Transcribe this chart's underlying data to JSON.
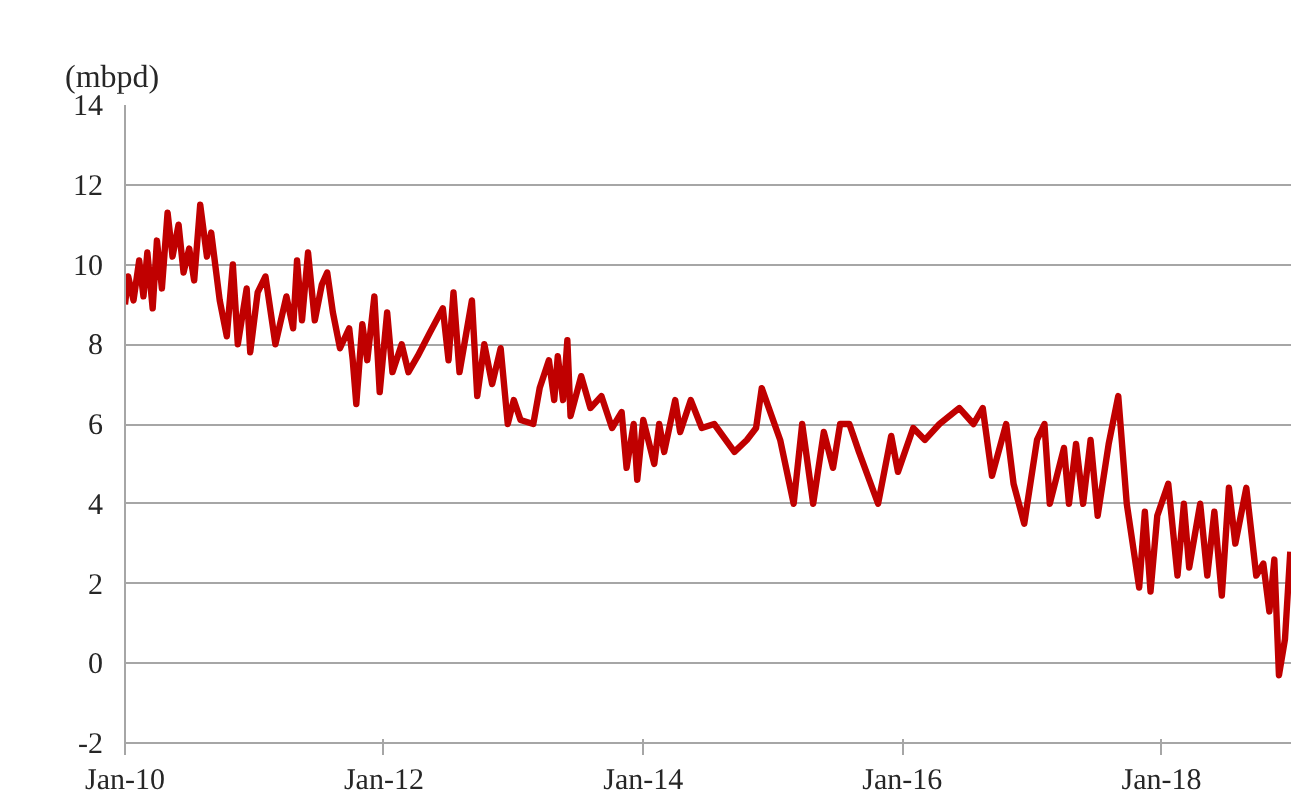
{
  "chart_data": {
    "type": "line",
    "ylabel": "(mbpd)",
    "x": [
      "2010-01-01",
      "2010-01-10",
      "2010-01-25",
      "2010-02-10",
      "2010-02-22",
      "2010-03-05",
      "2010-03-20",
      "2010-04-01",
      "2010-04-15",
      "2010-05-01",
      "2010-05-15",
      "2010-06-01",
      "2010-06-15",
      "2010-07-01",
      "2010-07-15",
      "2010-08-01",
      "2010-08-20",
      "2010-09-01",
      "2010-09-25",
      "2010-10-15",
      "2010-11-01",
      "2010-11-15",
      "2010-12-10",
      "2010-12-20",
      "2011-01-10",
      "2011-02-01",
      "2011-03-01",
      "2011-04-01",
      "2011-04-20",
      "2011-05-01",
      "2011-05-15",
      "2011-06-01",
      "2011-06-20",
      "2011-07-10",
      "2011-07-25",
      "2011-08-10",
      "2011-08-30",
      "2011-09-25",
      "2011-10-05",
      "2011-10-15",
      "2011-11-01",
      "2011-11-15",
      "2011-12-05",
      "2011-12-20",
      "2012-01-10",
      "2012-01-25",
      "2012-02-20",
      "2012-03-10",
      "2012-04-05",
      "2012-05-10",
      "2012-06-15",
      "2012-07-01",
      "2012-07-15",
      "2012-08-01",
      "2012-09-05",
      "2012-09-20",
      "2012-10-10",
      "2012-11-01",
      "2012-11-25",
      "2012-12-15",
      "2013-01-01",
      "2013-01-20",
      "2013-02-25",
      "2013-03-15",
      "2013-04-10",
      "2013-04-25",
      "2013-05-05",
      "2013-05-20",
      "2013-06-01",
      "2013-06-10",
      "2013-07-10",
      "2013-08-05",
      "2013-09-05",
      "2013-10-05",
      "2013-11-01",
      "2013-11-15",
      "2013-12-05",
      "2013-12-15",
      "2014-01-01",
      "2014-02-01",
      "2014-02-15",
      "2014-03-01",
      "2014-04-01",
      "2014-04-15",
      "2014-05-15",
      "2014-06-15",
      "2014-07-20",
      "2014-09-15",
      "2014-10-20",
      "2014-11-15",
      "2014-12-01",
      "2015-01-22",
      "2015-03-01",
      "2015-03-25",
      "2015-04-25",
      "2015-05-25",
      "2015-06-20",
      "2015-07-10",
      "2015-08-05",
      "2015-09-01",
      "2015-10-25",
      "2015-12-01",
      "2015-12-20",
      "2016-02-01",
      "2016-03-05",
      "2016-04-15",
      "2016-06-10",
      "2016-07-20",
      "2016-08-15",
      "2016-09-10",
      "2016-10-20",
      "2016-11-10",
      "2016-12-10",
      "2017-01-15",
      "2017-02-05",
      "2017-02-20",
      "2017-04-01",
      "2017-04-15",
      "2017-05-05",
      "2017-05-25",
      "2017-06-15",
      "2017-07-05",
      "2017-08-05",
      "2017-09-01",
      "2017-09-25",
      "2017-10-15",
      "2017-10-30",
      "2017-11-15",
      "2017-12-01",
      "2017-12-20",
      "2018-01-20",
      "2018-02-15",
      "2018-03-05",
      "2018-03-20",
      "2018-04-20",
      "2018-05-10",
      "2018-05-30",
      "2018-06-20",
      "2018-07-10",
      "2018-07-28",
      "2018-08-28",
      "2018-09-25",
      "2018-10-15",
      "2018-11-01",
      "2018-11-15",
      "2018-11-28",
      "2018-12-15",
      "2018-12-30"
    ],
    "series": [
      {
        "color": "#c00000",
        "values": [
          9.0,
          9.7,
          9.1,
          10.1,
          9.2,
          10.3,
          8.9,
          10.6,
          9.4,
          11.3,
          10.2,
          11.0,
          9.8,
          10.4,
          9.6,
          11.5,
          10.2,
          10.8,
          9.1,
          8.2,
          10.0,
          8.0,
          9.4,
          7.8,
          9.3,
          9.7,
          8.0,
          9.2,
          8.4,
          10.1,
          8.6,
          10.3,
          8.6,
          9.5,
          9.8,
          8.8,
          7.9,
          8.4,
          7.6,
          6.5,
          8.5,
          7.6,
          9.2,
          6.8,
          8.8,
          7.3,
          8.0,
          7.3,
          7.7,
          8.3,
          8.9,
          7.6,
          9.3,
          7.3,
          9.1,
          6.7,
          8.0,
          7.0,
          7.9,
          6.0,
          6.6,
          6.1,
          6.0,
          6.9,
          7.6,
          6.6,
          7.7,
          6.6,
          8.1,
          6.2,
          7.2,
          6.4,
          6.7,
          5.9,
          6.3,
          4.9,
          6.0,
          4.6,
          6.1,
          5.0,
          6.0,
          5.3,
          6.6,
          5.8,
          6.6,
          5.9,
          6.0,
          5.3,
          5.6,
          5.9,
          6.9,
          5.6,
          4.0,
          6.0,
          4.0,
          5.8,
          4.9,
          6.0,
          6.0,
          5.3,
          4.0,
          5.7,
          4.8,
          5.9,
          5.6,
          6.0,
          6.4,
          6.0,
          6.4,
          4.7,
          6.0,
          4.5,
          3.5,
          5.6,
          6.0,
          4.0,
          5.4,
          4.0,
          5.5,
          4.0,
          5.6,
          3.7,
          5.5,
          6.7,
          4.0,
          2.8,
          1.9,
          3.8,
          1.8,
          3.7,
          4.5,
          2.2,
          4.0,
          2.4,
          4.0,
          2.2,
          3.8,
          1.7,
          4.4,
          3.0,
          4.4,
          2.2,
          2.5,
          1.3,
          2.6,
          -0.3,
          0.6,
          2.8
        ]
      }
    ],
    "xlim": [
      "2010-01-01",
      "2019-01-01"
    ],
    "xticks": [
      {
        "value": "2010-01-01",
        "label": "Jan-10"
      },
      {
        "value": "2012-01-01",
        "label": "Jan-12"
      },
      {
        "value": "2014-01-01",
        "label": "Jan-14"
      },
      {
        "value": "2016-01-01",
        "label": "Jan-16"
      },
      {
        "value": "2018-01-01",
        "label": "Jan-18"
      }
    ],
    "ylim": [
      -2,
      14
    ],
    "yticks": [
      -2,
      0,
      2,
      4,
      6,
      8,
      10,
      12,
      14
    ],
    "grid": "y",
    "line_style": "solid"
  }
}
